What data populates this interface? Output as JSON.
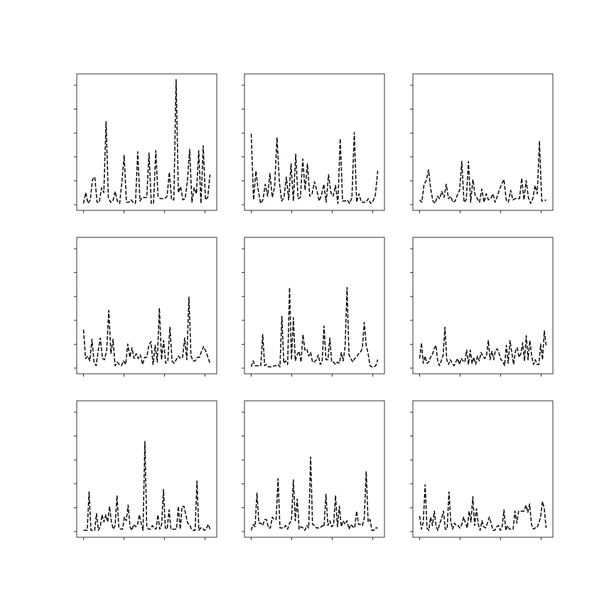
{
  "chart_data": [
    {
      "type": "line",
      "title": "",
      "xlabel": "",
      "ylabel": "",
      "grid": false,
      "line_style": "dashed",
      "line_color": "#000000",
      "x_range": [
        0,
        63
      ],
      "y_range": [
        0,
        5.2
      ],
      "x_ticks": 4,
      "y_ticks": 6,
      "values": [
        0.05,
        0.5,
        0.05,
        0.2,
        1.05,
        1.15,
        0.1,
        0.1,
        0.7,
        0.5,
        3.45,
        0.3,
        0.1,
        0.15,
        0.55,
        0.15,
        0.05,
        0.95,
        2.05,
        0.1,
        0.1,
        0.2,
        0.1,
        0.05,
        2.2,
        0.15,
        0.3,
        0.3,
        0.3,
        2.15,
        0.05,
        0.05,
        2.25,
        0.35,
        0.25,
        0.25,
        0.25,
        0.35,
        1.35,
        0.2,
        0.2,
        5.2,
        0.5,
        0.75,
        0.2,
        0.25,
        1.0,
        2.3,
        0.1,
        0.7,
        0.45,
        2.25,
        0.05,
        2.45,
        0.2,
        0.3,
        1.25
      ]
    },
    {
      "type": "line",
      "title": "",
      "xlabel": "",
      "ylabel": "",
      "grid": false,
      "line_style": "dashed",
      "line_color": "#000000",
      "x_range": [
        0,
        63
      ],
      "y_range": [
        0,
        5.2
      ],
      "x_ticks": 4,
      "y_ticks": 6,
      "values": [
        2.95,
        0.2,
        1.4,
        0.6,
        0.05,
        0.2,
        0.85,
        0.35,
        1.3,
        0.3,
        0.75,
        2.8,
        0.95,
        0.15,
        0.3,
        1.15,
        0.2,
        1.7,
        0.15,
        2.1,
        0.25,
        0.3,
        1.9,
        0.6,
        1.7,
        0.35,
        0.45,
        0.95,
        0.6,
        0.15,
        0.4,
        0.85,
        0.1,
        1.25,
        0.5,
        0.35,
        0.8,
        0.05,
        2.75,
        0.15,
        0.15,
        0.2,
        0.05,
        0.3,
        3.0,
        0.1,
        0.45,
        0.1,
        0.1,
        0.1,
        0.25,
        0.05,
        0.15,
        0.4,
        1.4
      ]
    },
    {
      "type": "line",
      "title": "",
      "xlabel": "",
      "ylabel": "",
      "grid": false,
      "line_style": "dashed",
      "line_color": "#000000",
      "x_range": [
        0,
        63
      ],
      "y_range": [
        0,
        5.2
      ],
      "x_ticks": 4,
      "y_ticks": 6,
      "values": [
        0.2,
        0.1,
        0.85,
        1.0,
        1.45,
        0.65,
        0.15,
        0.05,
        0.35,
        0.25,
        0.55,
        0.3,
        0.85,
        0.25,
        0.35,
        0.1,
        0.15,
        0.4,
        0.6,
        1.8,
        0.1,
        0.2,
        1.8,
        0.1,
        1.05,
        0.4,
        0.25,
        0.1,
        0.65,
        0.1,
        0.45,
        0.2,
        0.25,
        0.45,
        0.1,
        0.35,
        0.65,
        0.85,
        1.05,
        0.2,
        0.1,
        0.6,
        0.2,
        0.25,
        0.25,
        0.25,
        1.1,
        0.2,
        1.0,
        0.3,
        0.05,
        0.25,
        0.8,
        0.45,
        2.65,
        0.15,
        0.15,
        0.2
      ]
    },
    {
      "type": "line",
      "title": "",
      "xlabel": "",
      "ylabel": "",
      "grid": false,
      "line_style": "dashed",
      "line_color": "#000000",
      "x_range": [
        0,
        63
      ],
      "y_range": [
        0,
        5.2
      ],
      "x_ticks": 4,
      "y_ticks": 6,
      "values": [
        1.6,
        0.4,
        0.5,
        0.3,
        1.2,
        0.25,
        0.1,
        0.75,
        1.25,
        0.4,
        0.35,
        0.75,
        2.4,
        0.6,
        1.2,
        0.1,
        0.25,
        0.15,
        0.1,
        0.3,
        0.15,
        1.0,
        0.45,
        0.85,
        0.4,
        0.6,
        0.4,
        0.55,
        0.15,
        0.45,
        0.45,
        0.95,
        1.1,
        0.15,
        0.95,
        0.25,
        2.5,
        0.35,
        1.15,
        0.2,
        0.3,
        1.7,
        0.3,
        0.2,
        0.35,
        0.5,
        0.4,
        0.45,
        1.25,
        0.35,
        2.95,
        0.5,
        0.3,
        0.3,
        0.45,
        0.45,
        0.7,
        0.9,
        0.7,
        0.45,
        0.2
      ]
    },
    {
      "type": "line",
      "title": "",
      "xlabel": "",
      "ylabel": "",
      "grid": false,
      "line_style": "dashed",
      "line_color": "#000000",
      "x_range": [
        0,
        63
      ],
      "y_range": [
        0,
        5.2
      ],
      "x_ticks": 4,
      "y_ticks": 6,
      "values": [
        0.05,
        0.3,
        0.1,
        0.1,
        0.1,
        0.1,
        1.4,
        0.1,
        0.15,
        0.05,
        0.05,
        0.05,
        0.1,
        0.1,
        0.15,
        0.05,
        2.15,
        0.2,
        0.3,
        0.15,
        3.35,
        0.35,
        2.1,
        0.3,
        0.55,
        0.7,
        0.25,
        1.4,
        0.75,
        0.8,
        0.5,
        0.65,
        0.25,
        0.25,
        0.35,
        0.55,
        0.15,
        0.25,
        1.75,
        0.35,
        0.35,
        1.25,
        0.25,
        0.25,
        0.15,
        0.25,
        0.2,
        0.65,
        0.3,
        0.9,
        3.35,
        0.55,
        0.4,
        0.25,
        0.4,
        0.45,
        0.6,
        0.65,
        0.85,
        1.9,
        0.95,
        0.6,
        0.1,
        0.05,
        0.05,
        0.1,
        0.35
      ]
    },
    {
      "type": "line",
      "title": "",
      "xlabel": "",
      "ylabel": "",
      "grid": false,
      "line_style": "dashed",
      "line_color": "#000000",
      "x_range": [
        0,
        63
      ],
      "y_range": [
        0,
        5.2
      ],
      "x_ticks": 4,
      "y_ticks": 6,
      "values": [
        0.4,
        1.05,
        0.2,
        0.5,
        0.2,
        0.25,
        0.45,
        0.55,
        0.8,
        0.95,
        0.3,
        0.1,
        0.3,
        0.55,
        1.7,
        0.35,
        0.15,
        0.35,
        0.2,
        0.1,
        0.25,
        0.4,
        0.15,
        0.4,
        0.3,
        0.25,
        0.75,
        0.15,
        0.75,
        0.2,
        0.45,
        0.15,
        0.5,
        0.3,
        0.65,
        0.5,
        0.4,
        0.5,
        1.15,
        0.35,
        0.7,
        0.35,
        0.75,
        0.8,
        0.6,
        0.35,
        0.3,
        0.1,
        0.95,
        0.2,
        1.15,
        0.65,
        0.15,
        0.7,
        0.85,
        0.45,
        0.6,
        1.05,
        0.3,
        1.35,
        0.35,
        1.15,
        0.5,
        0.15,
        0.35,
        0.15,
        0.15,
        1.0,
        0.35,
        1.55,
        0.95
      ]
    },
    {
      "type": "line",
      "title": "",
      "xlabel": "",
      "ylabel": "",
      "grid": false,
      "line_style": "dashed",
      "line_color": "#000000",
      "x_range": [
        0,
        63
      ],
      "y_range": [
        0,
        5.2
      ],
      "x_ticks": 4,
      "y_ticks": 6,
      "values": [
        0.05,
        0.05,
        0.05,
        1.65,
        0.05,
        0.05,
        0.05,
        0.75,
        0.05,
        0.2,
        0.7,
        0.4,
        0.7,
        0.4,
        1.05,
        0.4,
        0.1,
        0.25,
        1.5,
        0.15,
        0.1,
        0.1,
        0.6,
        0.45,
        1.1,
        0.2,
        0.05,
        0.3,
        0.2,
        0.25,
        0.7,
        0.35,
        0.05,
        3.75,
        0.2,
        0.1,
        0.1,
        0.25,
        0.15,
        0.1,
        0.7,
        0.1,
        0.3,
        1.75,
        0.15,
        0.1,
        0.9,
        0.1,
        0.1,
        0.1,
        0.1,
        1.05,
        0.1,
        1.05,
        1.05,
        0.7,
        0.35,
        0.3,
        0.1,
        0.05,
        0.05,
        2.1,
        0.05,
        0.15,
        0.15,
        0.05,
        0.1,
        0.3,
        0.1
      ]
    },
    {
      "type": "line",
      "title": "",
      "xlabel": "",
      "ylabel": "",
      "grid": false,
      "line_style": "dashed",
      "line_color": "#000000",
      "x_range": [
        0,
        63
      ],
      "y_range": [
        0,
        5.2
      ],
      "x_ticks": 4,
      "y_ticks": 6,
      "values": [
        0.05,
        0.3,
        0.2,
        1.6,
        0.35,
        0.35,
        0.25,
        0.5,
        0.5,
        0.15,
        0.15,
        0.6,
        0.5,
        0.5,
        2.2,
        0.15,
        0.15,
        0.15,
        0.25,
        0.1,
        0.35,
        0.45,
        2.15,
        0.45,
        1.35,
        0.1,
        0.2,
        0.15,
        0.05,
        0.25,
        0.15,
        3.1,
        0.3,
        0.25,
        0.15,
        0.15,
        0.15,
        0.25,
        0.2,
        1.55,
        0.25,
        0.45,
        0.2,
        0.3,
        1.5,
        0.2,
        1.05,
        0.2,
        0.45,
        0.3,
        0.45,
        0.1,
        0.3,
        0.2,
        0.15,
        0.85,
        0.3,
        0.3,
        0.25,
        0.55,
        2.5,
        0.4,
        0.5,
        0.05,
        0.05,
        0.15,
        0.15
      ]
    },
    {
      "type": "line",
      "title": "",
      "xlabel": "",
      "ylabel": "",
      "grid": false,
      "line_style": "dashed",
      "line_color": "#000000",
      "x_range": [
        0,
        63
      ],
      "y_range": [
        0,
        5.2
      ],
      "x_ticks": 4,
      "y_ticks": 6,
      "values": [
        0.65,
        0.1,
        0.4,
        1.95,
        0.15,
        0.05,
        0.6,
        0.25,
        0.85,
        0.2,
        0.05,
        0.35,
        0.55,
        0.85,
        0.1,
        0.1,
        1.65,
        0.4,
        0.1,
        0.35,
        0.25,
        0.25,
        0.15,
        0.3,
        0.6,
        0.35,
        0.15,
        0.85,
        0.4,
        1.45,
        0.25,
        0.95,
        0.3,
        0.05,
        0.45,
        0.2,
        0.15,
        0.35,
        0.6,
        0.35,
        0.05,
        0.05,
        0.2,
        0.25,
        0.05,
        0.2,
        0.9,
        0.05,
        0.25,
        0.1,
        0.1,
        0.1,
        0.85,
        0.35,
        0.85,
        0.85,
        0.85,
        0.85,
        1.1,
        0.8,
        1.15,
        0.3,
        0.1,
        0.15,
        0.15,
        0.35,
        0.6,
        1.25,
        0.95,
        0.15
      ]
    }
  ]
}
